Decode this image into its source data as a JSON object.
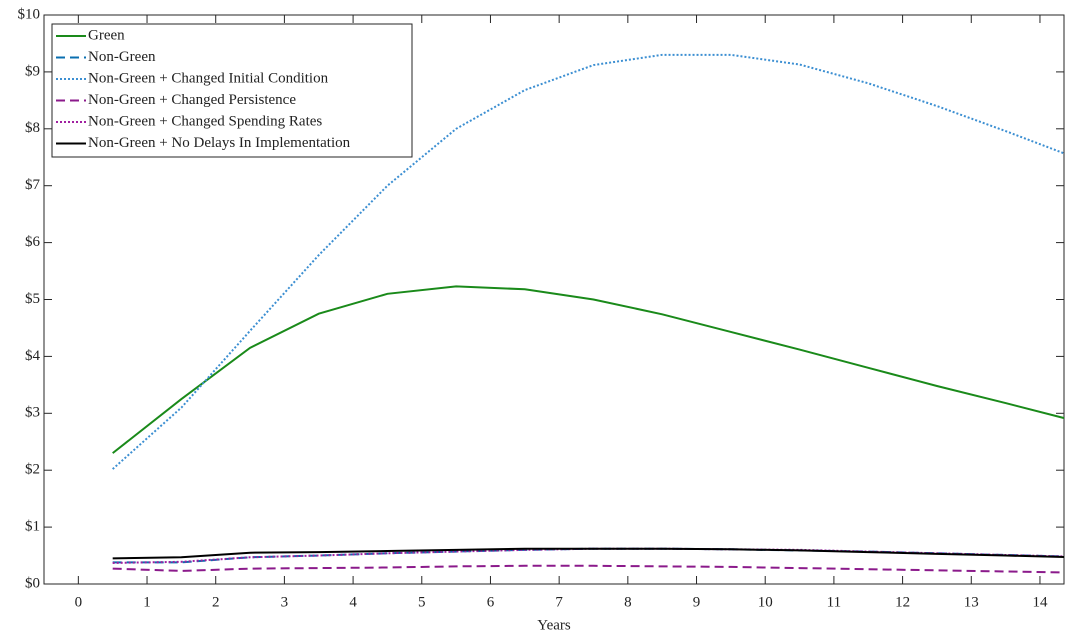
{
  "chart_data": {
    "type": "line",
    "xlabel": "Years",
    "x": [
      0.5,
      1.5,
      2.5,
      3.5,
      4.5,
      5.5,
      6.5,
      7.5,
      8.5,
      9.5,
      10.5,
      11.5,
      12.5,
      13.5,
      14.5
    ],
    "series": [
      {
        "name": "Green",
        "color": "#1a8a1a",
        "style": "solid",
        "values": [
          2.3,
          3.25,
          4.15,
          4.75,
          5.1,
          5.23,
          5.18,
          5.0,
          4.74,
          4.43,
          4.12,
          3.8,
          3.48,
          3.18,
          2.87
        ]
      },
      {
        "name": "Non-Green",
        "color": "#0a6fb0",
        "style": "dashed",
        "values": [
          0.38,
          0.38,
          0.47,
          0.5,
          0.54,
          0.57,
          0.6,
          0.62,
          0.62,
          0.61,
          0.59,
          0.57,
          0.54,
          0.51,
          0.48
        ]
      },
      {
        "name": "Non-Green + Changed Initial Condition",
        "color": "#3c8fd2",
        "style": "dotted",
        "values": [
          2.02,
          3.1,
          4.45,
          5.78,
          7.0,
          8.0,
          8.68,
          9.12,
          9.3,
          9.3,
          9.13,
          8.8,
          8.4,
          7.96,
          7.5
        ]
      },
      {
        "name": "Non-Green + Changed Persistence",
        "color": "#8b1a8b",
        "style": "dashed",
        "values": [
          0.27,
          0.23,
          0.27,
          0.28,
          0.29,
          0.31,
          0.32,
          0.32,
          0.31,
          0.3,
          0.28,
          0.26,
          0.24,
          0.22,
          0.2
        ]
      },
      {
        "name": "Non-Green + Changed Spending Rates",
        "color": "#a020a0",
        "style": "dotted",
        "values": [
          0.37,
          0.39,
          0.47,
          0.5,
          0.54,
          0.57,
          0.6,
          0.62,
          0.62,
          0.61,
          0.6,
          0.57,
          0.54,
          0.51,
          0.48
        ]
      },
      {
        "name": "Non-Green + No Delays In Implementation",
        "color": "#000000",
        "style": "solid",
        "values": [
          0.45,
          0.47,
          0.55,
          0.56,
          0.58,
          0.6,
          0.62,
          0.62,
          0.62,
          0.61,
          0.59,
          0.56,
          0.53,
          0.5,
          0.47
        ]
      }
    ],
    "xlim": [
      -0.5,
      14.35
    ],
    "xticks": [
      0,
      1,
      2,
      3,
      4,
      5,
      6,
      7,
      8,
      9,
      10,
      11,
      12,
      13,
      14
    ],
    "ylim": [
      0,
      10
    ],
    "yticks": [
      {
        "value": 0,
        "label": "$0"
      },
      {
        "value": 1,
        "label": "$1"
      },
      {
        "value": 2,
        "label": "$2"
      },
      {
        "value": 3,
        "label": "$3"
      },
      {
        "value": 4,
        "label": "$4"
      },
      {
        "value": 5,
        "label": "$5"
      },
      {
        "value": 6,
        "label": "$6"
      },
      {
        "value": 7,
        "label": "$7"
      },
      {
        "value": 8,
        "label": "$8"
      },
      {
        "value": 9,
        "label": "$9"
      },
      {
        "value": 10,
        "label": "$10"
      }
    ],
    "legend": "upper-left"
  }
}
